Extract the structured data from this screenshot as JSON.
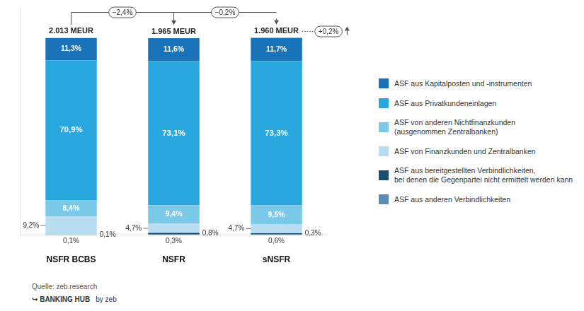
{
  "chart_data": {
    "type": "bar",
    "stacked": true,
    "categories": [
      "NSFR BCBS",
      "NSFR",
      "sNSFR"
    ],
    "series": [
      {
        "name": "ASF aus anderen Verbindlichkeiten",
        "color": "#5b8ab8",
        "values": [
          0.1,
          0.3,
          0.6
        ],
        "value_labels": [
          "0,1%",
          "0,3%",
          "0,6%"
        ]
      },
      {
        "name": "ASF aus bereitgestellten Verbindlichkeiten,\nbei denen die Gegenpartei nicht ermittelt werden kann",
        "color": "#1b4f72",
        "values": [
          0.1,
          0.8,
          0.3
        ],
        "value_labels": [
          "0,1%",
          "0,8%",
          "0,3%"
        ]
      },
      {
        "name": "ASF von Finanzkunden und Zentralbanken",
        "color": "#b8ddf0",
        "values": [
          9.2,
          4.7,
          4.7
        ],
        "value_labels": [
          "9,2%",
          "4,7%",
          "4,7%"
        ]
      },
      {
        "name": "ASF von anderen Nichtfinanzkunden\n(ausgenommen Zentralbanken)",
        "color": "#7ac9e8",
        "values": [
          8.4,
          9.4,
          9.5
        ],
        "value_labels": [
          "8,4%",
          "9,4%",
          "9,5%"
        ]
      },
      {
        "name": "ASF aus Privatkundeneinlagen",
        "color": "#29a8e0",
        "values": [
          70.9,
          73.1,
          73.3
        ],
        "value_labels": [
          "70,9%",
          "73,1%",
          "73,3%"
        ]
      },
      {
        "name": "ASF aus Kapitalposten und -instrumenten",
        "color": "#1a72b8",
        "values": [
          11.3,
          11.6,
          11.7
        ],
        "value_labels": [
          "11,3%",
          "11,6%",
          "11,7%"
        ]
      }
    ],
    "totals": [
      "2.013 MEUR",
      "1.965 MEUR",
      "1.960 MEUR"
    ],
    "annotations": [
      {
        "text": "−2,4%",
        "from": "NSFR BCBS",
        "to": "NSFR"
      },
      {
        "text": "−0,2%",
        "from": "NSFR",
        "to": "sNSFR"
      },
      {
        "text": "+0,2%",
        "at": "sNSFR"
      }
    ],
    "ylim": [
      0,
      115
    ],
    "tick_labels": "x",
    "grid": false,
    "legend": "right",
    "data_labels": true,
    "source": "Quelle: zeb.research",
    "footer": [
      "↪ BANKING HUB",
      "by zeb"
    ]
  }
}
